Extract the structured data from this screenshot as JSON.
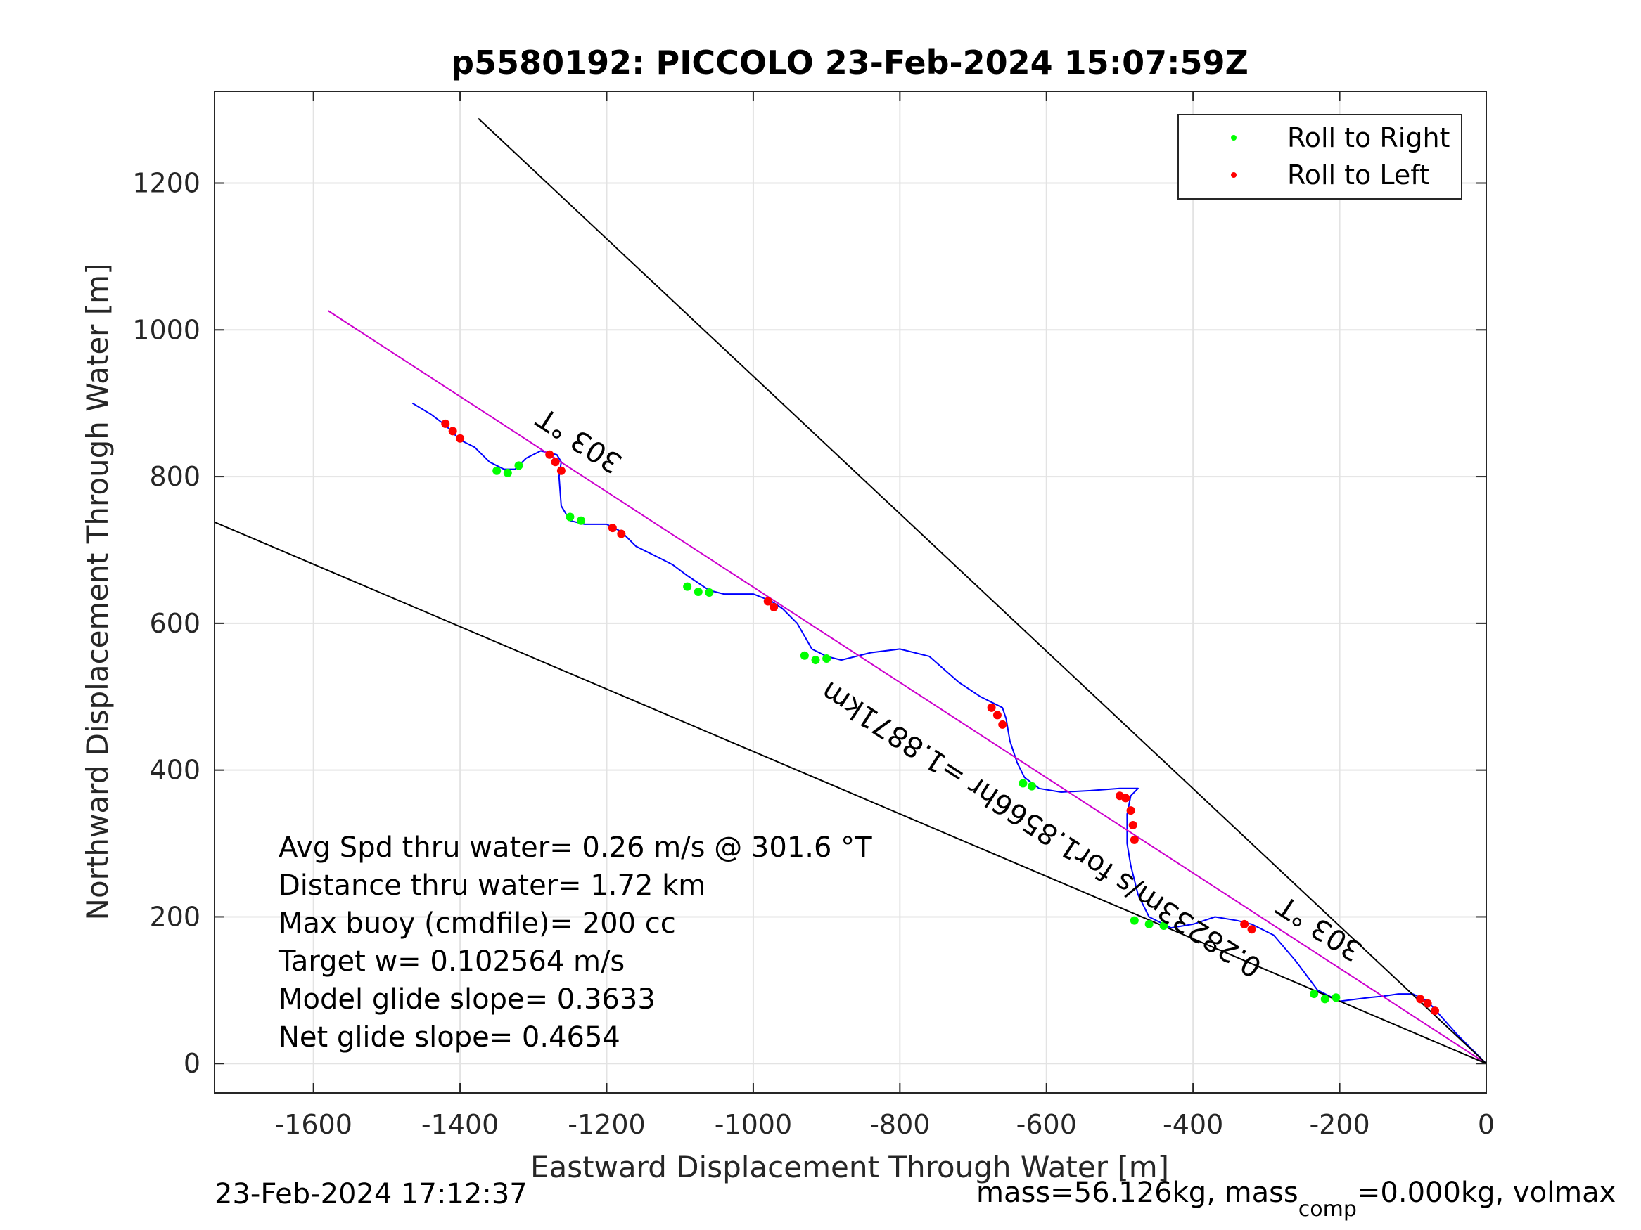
{
  "chart_data": {
    "type": "line",
    "title": "p5580192: PICCOLO 23-Feb-2024 15:07:59Z",
    "xlabel": "Eastward Displacement Through Water [m]",
    "ylabel": "Northward Displacement Through Water [m]",
    "xlim": [
      -1735,
      0
    ],
    "ylim": [
      -40,
      1325
    ],
    "xticks": [
      -1600,
      -1400,
      -1200,
      -1000,
      -800,
      -600,
      -400,
      -200,
      0
    ],
    "yticks": [
      0,
      200,
      400,
      600,
      800,
      1000,
      1200
    ],
    "xtick_labels": [
      "-1600",
      "-1400",
      "-1200",
      "-1000",
      "-800",
      "-600",
      "-400",
      "-200",
      "0"
    ],
    "ytick_labels": [
      "0",
      "200",
      "400",
      "600",
      "800",
      "1000",
      "1200"
    ],
    "grid": true,
    "legend": {
      "placement": "top-right",
      "entries": [
        {
          "label": "Roll to Right",
          "color": "#00ff00"
        },
        {
          "label": "Roll to Left",
          "color": "#ff0000"
        }
      ]
    },
    "series": [
      {
        "kind": "track",
        "color": "#0000ff",
        "x": [
          0,
          -40,
          -80,
          -100,
          -120,
          -140,
          -160,
          -200,
          -230,
          -260,
          -290,
          -320,
          -340,
          -370,
          -400,
          -430,
          -460,
          -475,
          -485,
          -490,
          -490,
          -485,
          -475,
          -500,
          -540,
          -580,
          -610,
          -630,
          -640,
          -650,
          -655,
          -660,
          -670,
          -690,
          -720,
          -760,
          -800,
          -840,
          -880,
          -900,
          -920,
          -940,
          -960,
          -975,
          -1000,
          -1040,
          -1060,
          -1090,
          -1110,
          -1130,
          -1160,
          -1180,
          -1200,
          -1230,
          -1250,
          -1262,
          -1265,
          -1262,
          -1268,
          -1290,
          -1310,
          -1325,
          -1340,
          -1360,
          -1380,
          -1400,
          -1420,
          -1440,
          -1465
        ],
        "y": [
          0,
          40,
          85,
          95,
          95,
          92,
          90,
          85,
          100,
          140,
          175,
          190,
          195,
          200,
          190,
          185,
          200,
          230,
          270,
          300,
          340,
          365,
          375,
          375,
          372,
          370,
          375,
          390,
          410,
          440,
          470,
          485,
          490,
          500,
          520,
          555,
          565,
          560,
          550,
          555,
          565,
          600,
          620,
          630,
          640,
          640,
          645,
          665,
          680,
          690,
          705,
          725,
          735,
          735,
          740,
          760,
          800,
          820,
          830,
          835,
          825,
          810,
          810,
          820,
          840,
          850,
          870,
          885,
          900
        ]
      },
      {
        "kind": "line",
        "color": "#cc00cc",
        "label": "303 °T",
        "x": [
          0,
          -1580
        ],
        "y": [
          0,
          1026
        ]
      },
      {
        "kind": "line",
        "color": "#000000",
        "x": [
          0,
          -1375
        ],
        "y": [
          0,
          1288
        ]
      },
      {
        "kind": "line",
        "color": "#000000",
        "x": [
          0,
          -1735
        ],
        "y": [
          0,
          738
        ]
      },
      {
        "kind": "scatter",
        "color": "#00ff00",
        "label": "Roll to Right",
        "x": [
          -205,
          -220,
          -235,
          -440,
          -460,
          -480,
          -620,
          -632,
          -1060,
          -1075,
          -1090,
          -1235,
          -1250,
          -1320,
          -1335,
          -1350,
          -900,
          -915,
          -930
        ],
        "y": [
          90,
          88,
          95,
          188,
          190,
          195,
          378,
          382,
          642,
          643,
          650,
          740,
          745,
          815,
          805,
          808,
          552,
          550,
          556
        ]
      },
      {
        "kind": "scatter",
        "color": "#ff0000",
        "label": "Roll to Left",
        "x": [
          -70,
          -80,
          -90,
          -320,
          -330,
          -480,
          -482,
          -485,
          -492,
          -500,
          -660,
          -667,
          -675,
          -980,
          -972,
          -1180,
          -1192,
          -1262,
          -1270,
          -1278,
          -1400,
          -1410,
          -1420
        ],
        "y": [
          72,
          82,
          88,
          183,
          190,
          305,
          325,
          345,
          362,
          365,
          462,
          475,
          485,
          630,
          622,
          722,
          730,
          808,
          820,
          830,
          852,
          862,
          872
        ]
      }
    ],
    "annotations": [
      {
        "text": "303 °T",
        "x": -1230,
        "y": 860,
        "rotation": 213
      },
      {
        "text": "303 °T",
        "x": -220,
        "y": 195,
        "rotation": 213
      },
      {
        "text": "0.28233m/s for1.8566hr =1.8871km",
        "x": -600,
        "y": 330,
        "rotation": 213
      }
    ],
    "stats_lines": [
      "Avg Spd thru water=  0.26 m/s @ 301.6 °T",
      "Distance thru water=  1.72 km",
      "Max buoy (cmdfile)= 200 cc",
      "Target w= 0.102564 m/s",
      "Model glide slope= 0.3633",
      "Net glide slope= 0.4654"
    ]
  },
  "footer": {
    "left": "23-Feb-2024 17:12:37",
    "right_prefix": "mass=56.126kg, mass",
    "right_sub": "comp",
    "right_suffix": "=0.000kg, volmax"
  }
}
